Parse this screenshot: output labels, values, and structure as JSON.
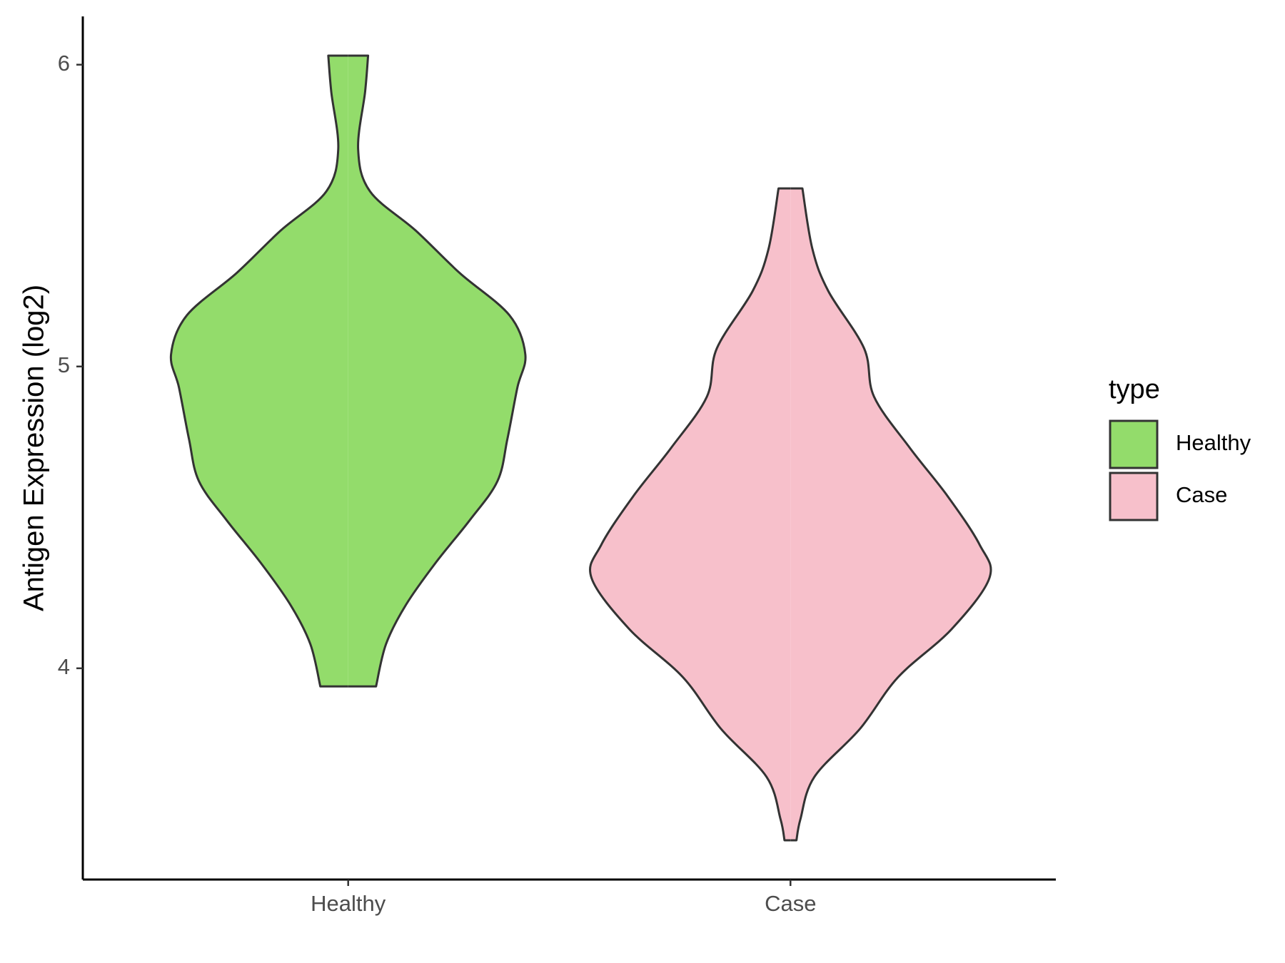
{
  "chart_data": {
    "type": "violin",
    "y_label": "Antigen Expression (log2)",
    "categories": [
      "Healthy",
      "Case"
    ],
    "legend_title": "type",
    "violins": [
      {
        "name": "Healthy",
        "color": "#93dc6b",
        "y": [
          6.03,
          5.91,
          5.72,
          5.58,
          5.45,
          5.31,
          5.17,
          5.04,
          4.93,
          4.76,
          4.62,
          4.49,
          4.35,
          4.21,
          4.08,
          3.94
        ],
        "density": [
          0.1,
          0.085,
          0.05,
          0.11,
          0.34,
          0.56,
          0.81,
          0.89,
          0.85,
          0.8,
          0.75,
          0.61,
          0.44,
          0.29,
          0.19,
          0.14
        ]
      },
      {
        "name": "Case",
        "color": "#f7c0cb",
        "y": [
          5.59,
          5.39,
          5.25,
          5.06,
          4.9,
          4.73,
          4.57,
          4.41,
          4.3,
          4.13,
          3.97,
          3.8,
          3.64,
          3.5,
          3.43
        ],
        "density": [
          0.06,
          0.11,
          0.19,
          0.37,
          0.42,
          0.6,
          0.79,
          0.95,
          1.0,
          0.81,
          0.54,
          0.35,
          0.12,
          0.05,
          0.03
        ]
      }
    ],
    "ylim": [
      3.3,
      6.16
    ],
    "yticks": [
      4,
      5,
      6
    ]
  }
}
